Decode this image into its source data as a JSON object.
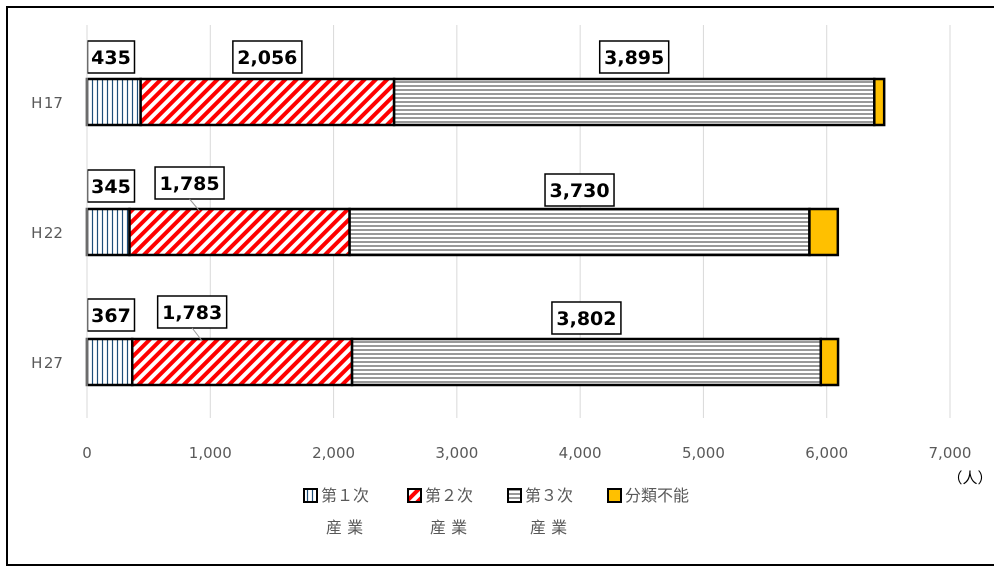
{
  "chart_data": {
    "type": "bar",
    "orientation": "horizontal",
    "stacked": true,
    "categories": [
      "H17",
      "H22",
      "H27"
    ],
    "category_labels": [
      "H 17",
      "H 22",
      "H 27"
    ],
    "series": [
      {
        "name": "第1次産業",
        "legend_lines": [
          "第１次",
          "産 業"
        ],
        "values": [
          435,
          345,
          367
        ],
        "labels": [
          "435",
          "345",
          "367"
        ],
        "pattern": "vertical-lines",
        "color": "#1F4E79"
      },
      {
        "name": "第2次産業",
        "legend_lines": [
          "第２次",
          "産 業"
        ],
        "values": [
          2056,
          1785,
          1783
        ],
        "labels": [
          "2,056",
          "1,785",
          "1,783"
        ],
        "pattern": "diagonal-red",
        "color": "#FF0000"
      },
      {
        "name": "第3次産業",
        "legend_lines": [
          "第３次",
          "産 業"
        ],
        "values": [
          3895,
          3730,
          3802
        ],
        "labels": [
          "3,895",
          "3,730",
          "3,802"
        ],
        "pattern": "horizontal-lines",
        "color": "#000000"
      },
      {
        "name": "分類不能",
        "legend_lines": [
          "分類不能",
          ""
        ],
        "values": [
          80,
          230,
          140
        ],
        "labels": [],
        "pattern": "solid",
        "color": "#FFC000"
      }
    ],
    "xlim": [
      0,
      7000
    ],
    "xticks": [
      0,
      1000,
      2000,
      3000,
      4000,
      5000,
      6000,
      7000
    ],
    "xtick_labels": [
      "0",
      "1,000",
      "2,000",
      "3,000",
      "4,000",
      "5,000",
      "6,000",
      "7,000"
    ],
    "unit_label": "（人）",
    "grid": true,
    "legend_position": "bottom"
  }
}
